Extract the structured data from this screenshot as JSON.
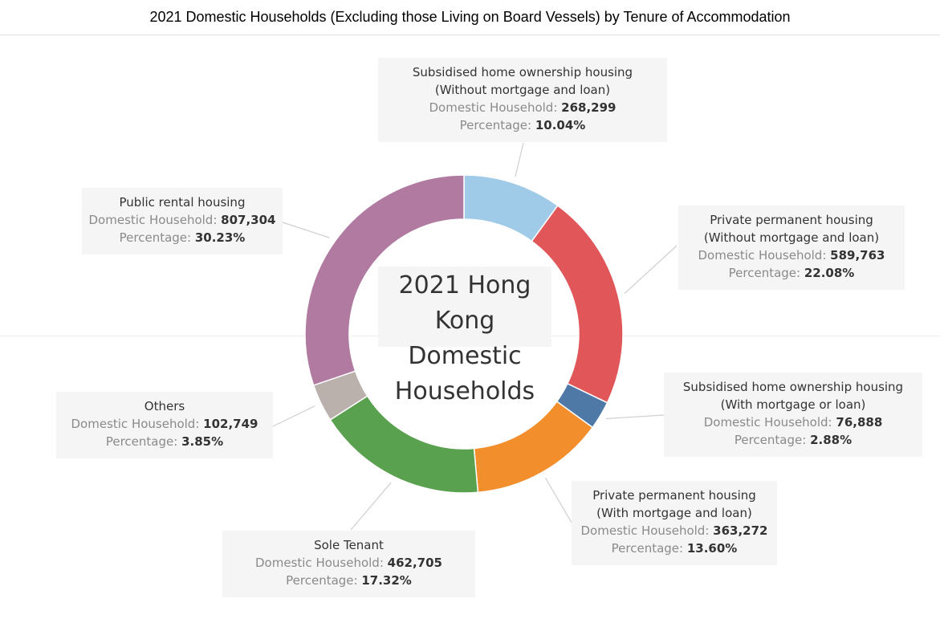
{
  "title": "2021 Domestic Households (Excluding those Living on Board Vessels) by Tenure of Accommodation",
  "center_title": "2021 Hong Kong Domestic Households",
  "tooltip_keys": {
    "household": "Domestic Household:",
    "percentage": "Percentage:"
  },
  "chart_data": {
    "type": "pie",
    "style": "donut",
    "start": "12 o'clock, clockwise",
    "slices": [
      {
        "label_lines": [
          "Subsidised home ownership housing",
          "(Without mortgage and loan)"
        ],
        "households": "268,299",
        "percentage": "10.04%",
        "value": 10.04,
        "color": "#a0cbe8"
      },
      {
        "label_lines": [
          "Private permanent housing",
          "(Without mortgage and loan)"
        ],
        "households": "589,763",
        "percentage": "22.08%",
        "value": 22.08,
        "color": "#e15759"
      },
      {
        "label_lines": [
          "Subsidised home ownership housing",
          "(With mortgage or loan)"
        ],
        "households": "76,888",
        "percentage": "2.88%",
        "value": 2.88,
        "color": "#4e79a7"
      },
      {
        "label_lines": [
          "Private permanent housing",
          "(With mortgage and loan)"
        ],
        "households": "363,272",
        "percentage": "13.60%",
        "value": 13.6,
        "color": "#f28e2b"
      },
      {
        "label_lines": [
          "Sole Tenant"
        ],
        "households": "462,705",
        "percentage": "17.32%",
        "value": 17.32,
        "color": "#59a14f"
      },
      {
        "label_lines": [
          "Others"
        ],
        "households": "102,749",
        "percentage": "3.85%",
        "value": 3.85,
        "color": "#bab0ac"
      },
      {
        "label_lines": [
          "Public rental housing"
        ],
        "households": "807,304",
        "percentage": "30.23%",
        "value": 30.23,
        "color": "#b07aa1"
      }
    ]
  }
}
